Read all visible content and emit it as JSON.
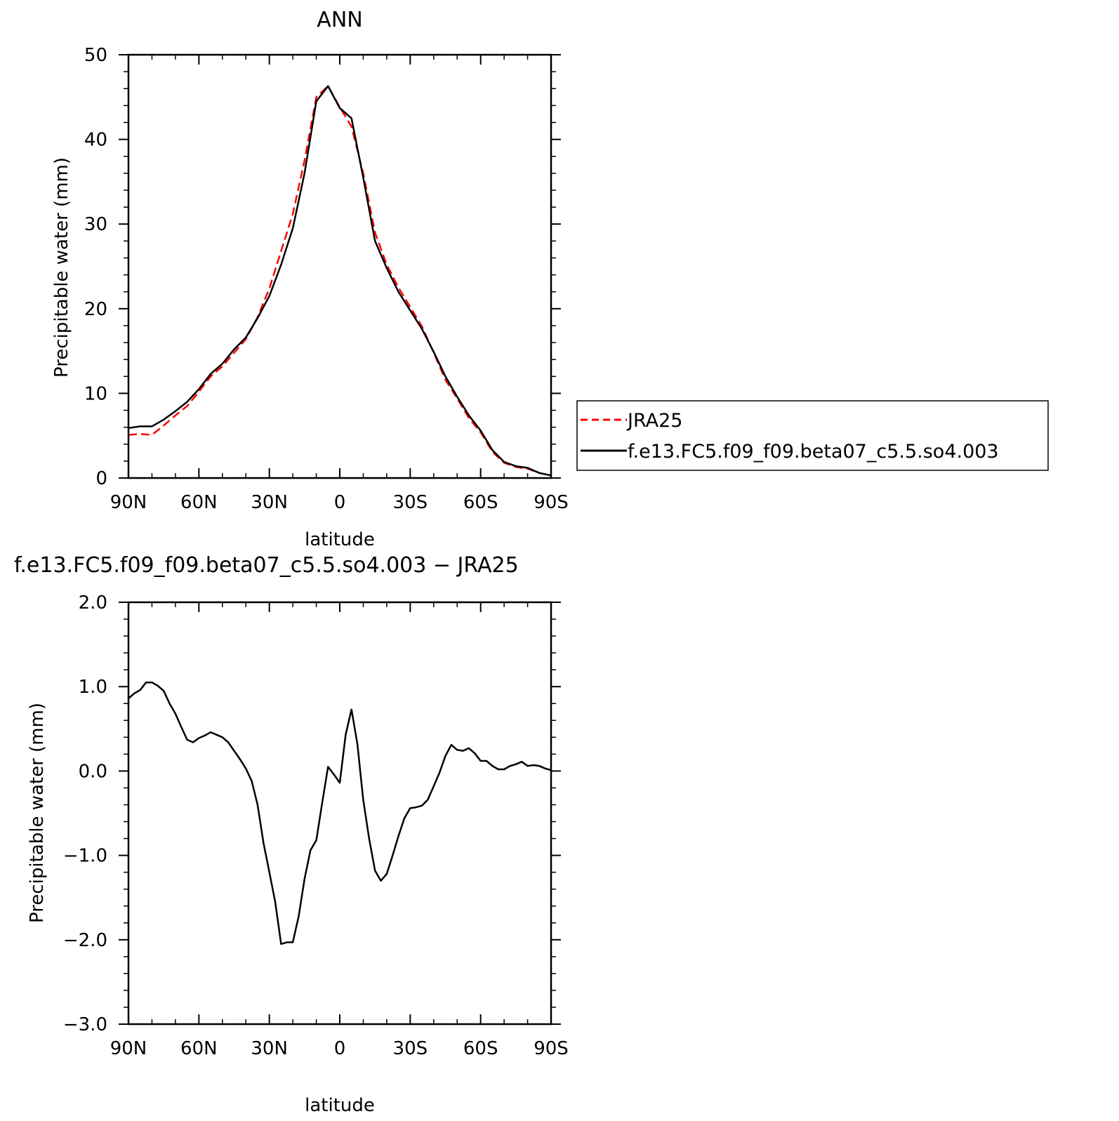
{
  "colors": {
    "jra25": "#ff0000",
    "model": "#000000",
    "axis": "#000000",
    "background": "#ffffff"
  },
  "legend": {
    "placement": "right of top panel",
    "entries": [
      {
        "label": "JRA25",
        "color": "#ff0000",
        "style": "dashed"
      },
      {
        "label": "f.e13.FC5.f09_f09.beta07_c5.5.so4.003",
        "color": "#000000",
        "style": "solid"
      }
    ]
  },
  "chart_data": [
    {
      "type": "line",
      "title": "ANN",
      "xlabel": "latitude",
      "ylabel": "Precipitable water (mm)",
      "xlim": [
        90,
        -90
      ],
      "ylim": [
        0,
        50
      ],
      "x_ticks": [
        90,
        60,
        30,
        0,
        -30,
        -60,
        -90
      ],
      "x_tick_labels": [
        "90N",
        "60N",
        "30N",
        "0",
        "30S",
        "60S",
        "90S"
      ],
      "y_ticks": [
        0,
        10,
        20,
        30,
        40,
        50
      ],
      "y_tick_labels": [
        "0",
        "10",
        "20",
        "30",
        "40",
        "50"
      ],
      "grid": false,
      "series": [
        {
          "name": "JRA25",
          "color": "#ff0000",
          "dash": true,
          "x": [
            90,
            85,
            80,
            75,
            70,
            65,
            60,
            55,
            50,
            45,
            40,
            35,
            30,
            25,
            20,
            15,
            10,
            5,
            0,
            -5,
            -10,
            -15,
            -20,
            -25,
            -30,
            -35,
            -40,
            -45,
            -50,
            -55,
            -60,
            -65,
            -70,
            -75,
            -80,
            -85,
            -90
          ],
          "y": [
            5.1,
            5.2,
            5.1,
            6.2,
            7.4,
            8.5,
            10.2,
            12.0,
            13.2,
            14.8,
            16.4,
            19.0,
            22.4,
            26.8,
            31.2,
            37.5,
            45.0,
            46.3,
            43.8,
            41.5,
            36.0,
            29.0,
            25.2,
            22.5,
            20.2,
            17.9,
            14.8,
            11.6,
            9.4,
            7.1,
            5.4,
            3.1,
            1.8,
            1.3,
            1.1,
            0.6,
            0.3
          ]
        },
        {
          "name": "f.e13.FC5.f09_f09.beta07_c5.5.so4.003",
          "color": "#000000",
          "dash": false,
          "x": [
            90,
            85,
            80,
            75,
            70,
            65,
            60,
            55,
            50,
            45,
            40,
            35,
            30,
            25,
            20,
            15,
            10,
            5,
            0,
            -5,
            -10,
            -15,
            -20,
            -25,
            -30,
            -35,
            -40,
            -45,
            -50,
            -55,
            -60,
            -65,
            -70,
            -75,
            -80,
            -85,
            -90
          ],
          "y": [
            5.9,
            6.1,
            6.1,
            6.9,
            7.9,
            9.0,
            10.5,
            12.3,
            13.5,
            15.2,
            16.6,
            18.9,
            21.5,
            25.2,
            29.5,
            36.0,
            44.5,
            46.3,
            43.7,
            42.5,
            35.5,
            28.0,
            24.8,
            22.0,
            19.8,
            17.6,
            14.9,
            12.0,
            9.6,
            7.4,
            5.6,
            3.3,
            1.9,
            1.4,
            1.2,
            0.6,
            0.3
          ]
        }
      ]
    },
    {
      "type": "line",
      "title": "f.e13.FC5.f09_f09.beta07_c5.5.so4.003 − JRA25",
      "xlabel": "latitude",
      "ylabel": "Precipitable water (mm)",
      "xlim": [
        90,
        -90
      ],
      "ylim": [
        -3.0,
        2.0
      ],
      "x_ticks": [
        90,
        60,
        30,
        0,
        -30,
        -60,
        -90
      ],
      "x_tick_labels": [
        "90N",
        "60N",
        "30N",
        "0",
        "30S",
        "60S",
        "90S"
      ],
      "y_ticks": [
        2.0,
        1.0,
        0.0,
        -1.0,
        -2.0,
        -3.0
      ],
      "y_tick_labels": [
        "2.0",
        "1.0",
        "0.0",
        "−1.0",
        "−2.0",
        "−3.0"
      ],
      "grid": false,
      "series": [
        {
          "name": "f.e13.FC5.f09_f09.beta07_c5.5.so4.003 − JRA25",
          "color": "#000000",
          "dash": false,
          "x": [
            90,
            87.5,
            85,
            82.5,
            80,
            77.5,
            75,
            72.5,
            70,
            67.5,
            65,
            62.5,
            60,
            57.5,
            55,
            52.5,
            50,
            47.5,
            45,
            42.5,
            40,
            37.5,
            35,
            32.5,
            30,
            27.5,
            25,
            22.5,
            20,
            17.5,
            15,
            12.5,
            10,
            7.5,
            5,
            2.5,
            0,
            -2.5,
            -5,
            -7.5,
            -10,
            -12.5,
            -15,
            -17.5,
            -20,
            -22.5,
            -25,
            -27.5,
            -30,
            -32.5,
            -35,
            -37.5,
            -40,
            -42.5,
            -45,
            -47.5,
            -50,
            -52.5,
            -55,
            -57.5,
            -60,
            -62.5,
            -65,
            -67.5,
            -70,
            -72.5,
            -75,
            -77.5,
            -80,
            -82.5,
            -85,
            -87.5,
            -90
          ],
          "y": [
            0.86,
            0.92,
            0.96,
            1.05,
            1.05,
            1.01,
            0.95,
            0.8,
            0.68,
            0.52,
            0.37,
            0.34,
            0.39,
            0.42,
            0.46,
            0.43,
            0.4,
            0.34,
            0.24,
            0.14,
            0.03,
            -0.12,
            -0.4,
            -0.85,
            -1.2,
            -1.55,
            -2.05,
            -2.03,
            -2.03,
            -1.72,
            -1.28,
            -0.94,
            -0.82,
            -0.38,
            0.05,
            -0.04,
            -0.14,
            0.43,
            0.73,
            0.32,
            -0.34,
            -0.8,
            -1.18,
            -1.3,
            -1.22,
            -1.0,
            -0.77,
            -0.56,
            -0.44,
            -0.43,
            -0.41,
            -0.34,
            -0.18,
            -0.02,
            0.18,
            0.31,
            0.25,
            0.24,
            0.27,
            0.21,
            0.12,
            0.12,
            0.06,
            0.02,
            0.02,
            0.06,
            0.08,
            0.11,
            0.06,
            0.07,
            0.06,
            0.03,
            0.01
          ]
        }
      ]
    }
  ]
}
